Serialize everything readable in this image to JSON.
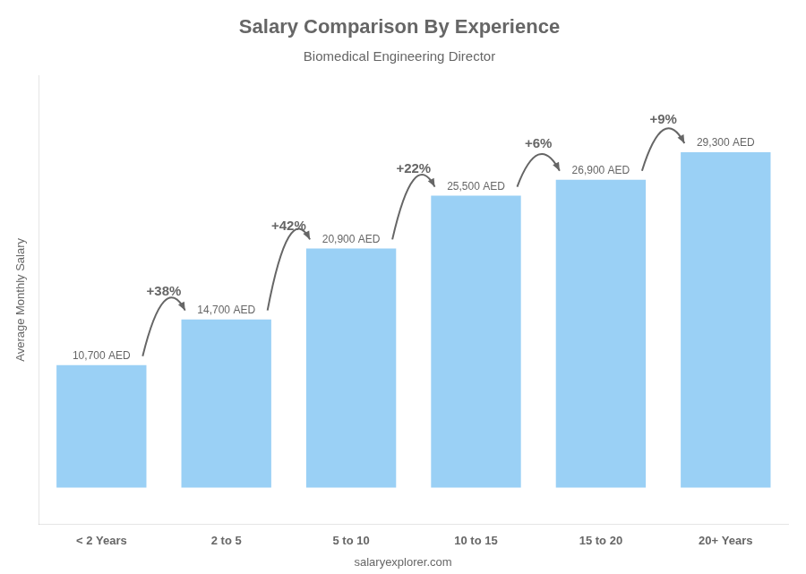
{
  "chart_data": {
    "type": "bar",
    "title": "Salary Comparison By Experience",
    "subtitle": "Biomedical Engineering Director",
    "y_label": "Average Monthly Salary",
    "footer": "salaryexplorer.com",
    "categories": [
      "< 2 Years",
      "2 to 5",
      "5 to 10",
      "10 to 15",
      "15 to 20",
      "20+ Years"
    ],
    "values": [
      10700,
      14700,
      20900,
      25500,
      26900,
      29300
    ],
    "value_labels": [
      "10,700 AED",
      "14,700 AED",
      "20,900 AED",
      "25,500 AED",
      "26,900 AED",
      "29,300 AED"
    ],
    "data_labels": true,
    "annotations": [
      {
        "text": "+38%",
        "from": "< 2 Years",
        "to": "2 to 5"
      },
      {
        "text": "+42%",
        "from": "2 to 5",
        "to": "5 to 10"
      },
      {
        "text": "+22%",
        "from": "5 to 10",
        "to": "10 to 15"
      },
      {
        "text": "+6%",
        "from": "10 to 15",
        "to": "15 to 20"
      },
      {
        "text": "+9%",
        "from": "15 to 20",
        "to": "20+ Years"
      }
    ],
    "ylim": [
      -3200,
      36000
    ],
    "grid": false,
    "tick_labels": "x"
  }
}
